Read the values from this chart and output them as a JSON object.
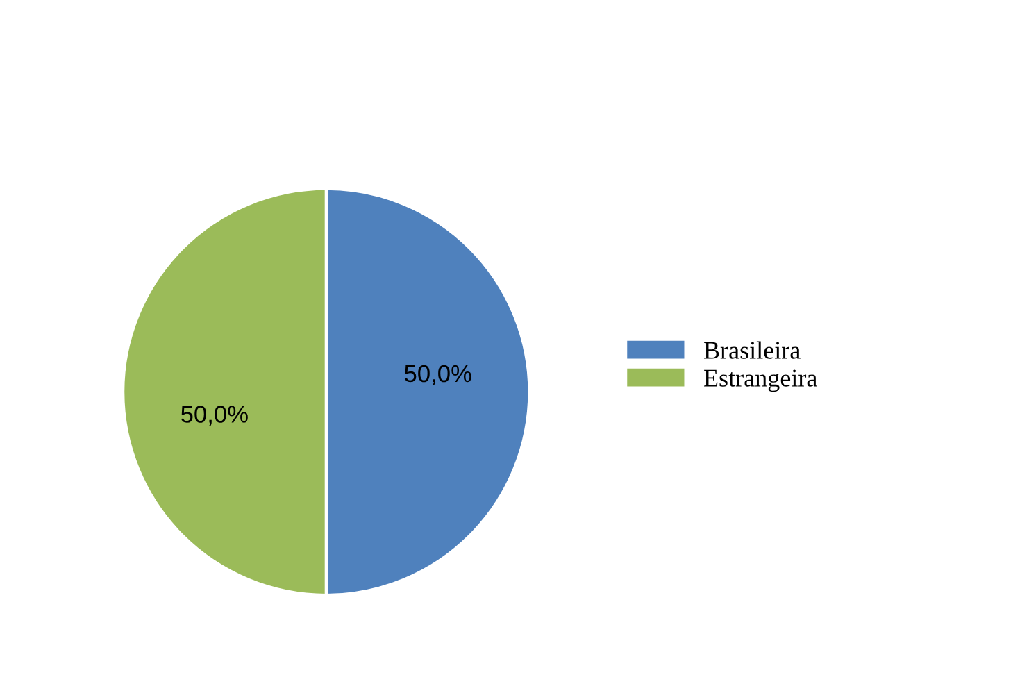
{
  "chart_data": {
    "type": "pie",
    "categories": [
      "Brasileira",
      "Estrangeira"
    ],
    "values": [
      50,
      50
    ],
    "colors": [
      "#4f81bd",
      "#9bbb59"
    ],
    "value_labels": [
      "50,0%",
      "50,0%"
    ],
    "legend": "right"
  }
}
